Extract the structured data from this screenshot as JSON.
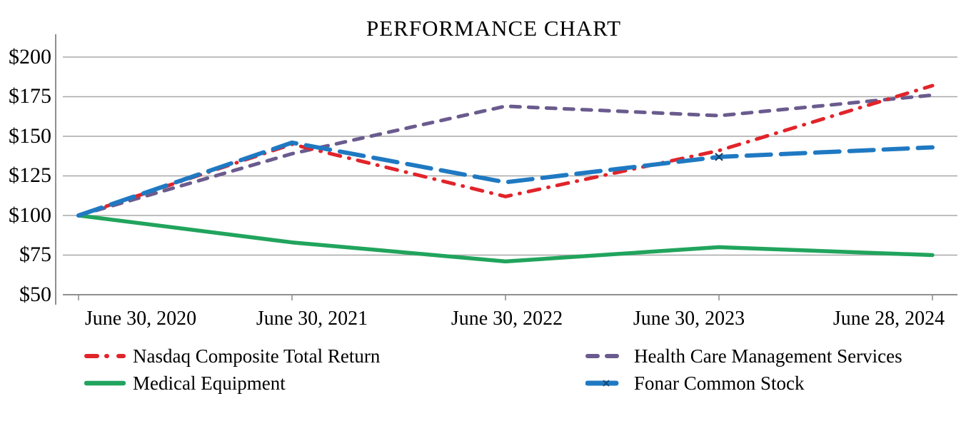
{
  "title": "PERFORMANCE CHART",
  "chart_data": {
    "type": "line",
    "title": "PERFORMANCE CHART",
    "categories": [
      "June 30, 2020",
      "June 30, 2021",
      "June 30, 2022",
      "June 30, 2023",
      "June 28, 2024"
    ],
    "series": [
      {
        "name": "Nasdaq Composite Total Return",
        "color": "#e1242a",
        "dash": "dashdot",
        "values": [
          100,
          145,
          112,
          141,
          182
        ]
      },
      {
        "name": "Health Care Management Services",
        "color": "#6a5b8e",
        "dash": "dashed",
        "values": [
          100,
          139,
          169,
          163,
          176
        ]
      },
      {
        "name": "Medical Equipment",
        "color": "#21a45d",
        "dash": "solid",
        "values": [
          100,
          83,
          71,
          80,
          75
        ]
      },
      {
        "name": "Fonar Common Stock",
        "color": "#1f79c2",
        "dash": "longdash",
        "values": [
          100,
          146,
          121,
          137,
          143
        ],
        "marker_symbol": "x",
        "marker_indices": [
          3
        ],
        "marker_color": "#17456e"
      }
    ],
    "y_axis": {
      "min": 50,
      "max": 200,
      "step": 25,
      "tick_labels": [
        "$200",
        "$175",
        "$150",
        "$125",
        "$100",
        "$75",
        "$50"
      ]
    },
    "x_axis": {
      "tick_labels": [
        "June 30, 2020",
        "June 30, 2021",
        "June 30, 2022",
        "June 30, 2023",
        "June 28, 2024"
      ]
    },
    "grid": true,
    "gridline_color": "#a8a8a8",
    "axis_color": "#8f8f8f",
    "legend_position": "bottom",
    "legend_columns": [
      [
        0,
        2
      ],
      [
        1,
        3
      ]
    ],
    "ylim": [
      50,
      200
    ]
  }
}
